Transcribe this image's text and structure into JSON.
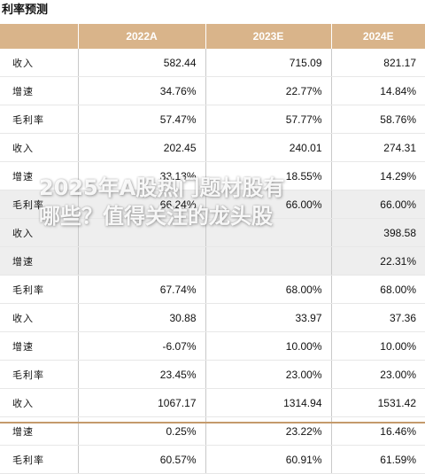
{
  "title": "利率预测",
  "columns": [
    "",
    "2022A",
    "2023E",
    "2024E"
  ],
  "rows": [
    {
      "label": "收入",
      "values": [
        "582.44",
        "715.09",
        "821.17"
      ],
      "shaded": false
    },
    {
      "label": "增速",
      "values": [
        "34.76%",
        "22.77%",
        "14.84%"
      ],
      "shaded": false
    },
    {
      "label": "毛利率",
      "values": [
        "57.47%",
        "57.77%",
        "58.76%"
      ],
      "shaded": false
    },
    {
      "label": "收入",
      "values": [
        "202.45",
        "240.01",
        "274.31"
      ],
      "shaded": false
    },
    {
      "label": "增速",
      "values": [
        "33.13%",
        "18.55%",
        "14.29%"
      ],
      "shaded": false
    },
    {
      "label": "毛利率",
      "values": [
        "66.24%",
        "66.00%",
        "66.00%"
      ],
      "shaded": true
    },
    {
      "label": "收入",
      "values": [
        "",
        "",
        "398.58"
      ],
      "shaded": true
    },
    {
      "label": "增速",
      "values": [
        "",
        "",
        "22.31%"
      ],
      "shaded": true
    },
    {
      "label": "毛利率",
      "values": [
        "67.74%",
        "68.00%",
        "68.00%"
      ],
      "shaded": false
    },
    {
      "label": "收入",
      "values": [
        "30.88",
        "33.97",
        "37.36"
      ],
      "shaded": false
    },
    {
      "label": "增速",
      "values": [
        "-6.07%",
        "10.00%",
        "10.00%"
      ],
      "shaded": false
    },
    {
      "label": "毛利率",
      "values": [
        "23.45%",
        "23.00%",
        "23.00%"
      ],
      "shaded": false
    },
    {
      "label": "收入",
      "values": [
        "1067.17",
        "1314.94",
        "1531.42"
      ],
      "shaded": false
    },
    {
      "label": "增速",
      "values": [
        "0.25%",
        "23.22%",
        "16.46%"
      ],
      "shaded": false
    },
    {
      "label": "毛利率",
      "values": [
        "60.57%",
        "60.91%",
        "61.59%"
      ],
      "shaded": false
    }
  ],
  "watermark": {
    "line1": "2025年A股热门题材股有",
    "line2": "哪些？值得关注的龙头股"
  }
}
